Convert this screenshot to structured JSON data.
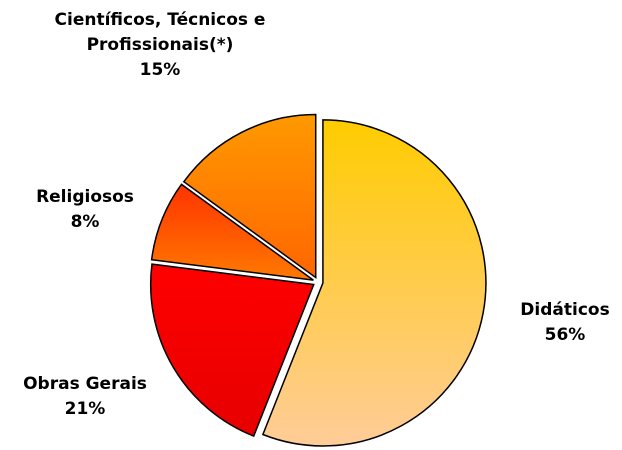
{
  "chart_data": {
    "type": "pie",
    "categories": [
      "Didáticos",
      "Obras Gerais",
      "Religiosos",
      "Científicos, Técnicos e Profissionais(*)"
    ],
    "values": [
      56,
      21,
      8,
      15
    ],
    "value_labels": [
      "56%",
      "21%",
      "8%",
      "15%"
    ],
    "colors": [
      [
        "#ffcc00",
        "#ffcc99"
      ],
      [
        "#ff0000",
        "#e60000"
      ],
      [
        "#ff3300",
        "#ff7a00"
      ],
      [
        "#ff9900",
        "#ff6600"
      ]
    ]
  }
}
